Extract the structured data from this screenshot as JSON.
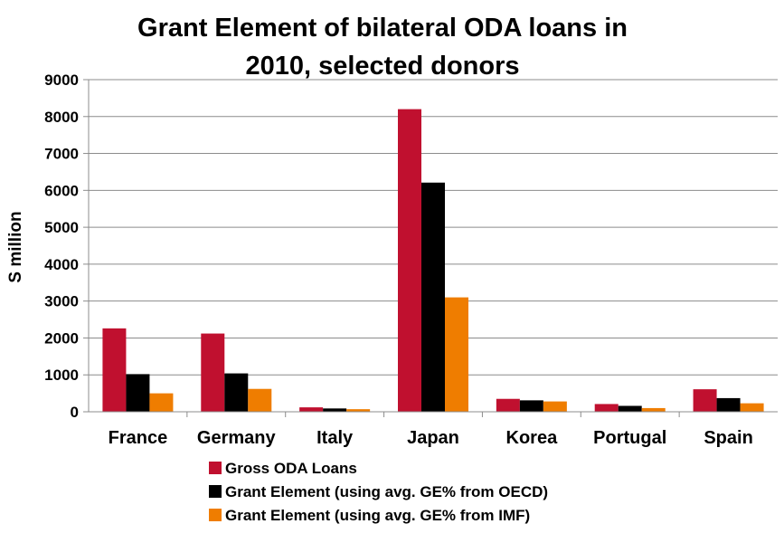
{
  "chart_data": {
    "type": "bar",
    "title_lines": [
      "Grant Element of bilateral ODA loans in",
      "2010, selected donors"
    ],
    "ylabel": "S million",
    "xlabel": "",
    "ylim": [
      0,
      9000
    ],
    "yticks": [
      0,
      1000,
      2000,
      3000,
      4000,
      5000,
      6000,
      7000,
      8000,
      9000
    ],
    "grid": true,
    "legend_position": "bottom",
    "categories": [
      "France",
      "Germany",
      "Italy",
      "Japan",
      "Korea",
      "Portugal",
      "Spain"
    ],
    "series": [
      {
        "name": "Gross ODA Loans",
        "color": "#C0102F",
        "values": [
          2260,
          2120,
          120,
          8200,
          350,
          210,
          610
        ]
      },
      {
        "name": "Grant Element (using avg. GE% from OECD)",
        "color": "#000000",
        "values": [
          1020,
          1040,
          90,
          6210,
          310,
          160,
          370
        ]
      },
      {
        "name": "Grant Element (using avg. GE% from IMF)",
        "color": "#EF7D00",
        "values": [
          500,
          620,
          70,
          3100,
          280,
          100,
          230
        ]
      }
    ]
  }
}
